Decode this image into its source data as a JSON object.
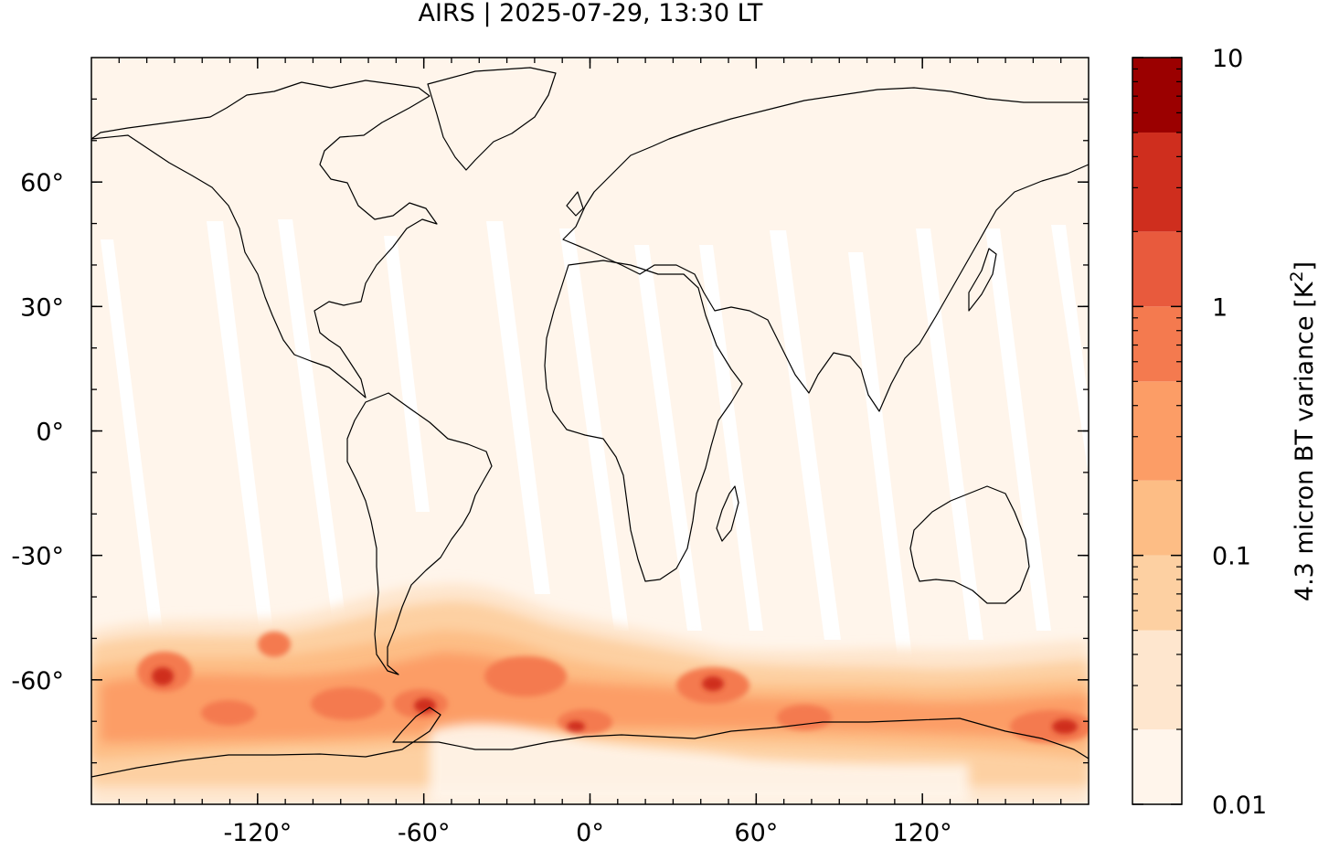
{
  "title": "AIRS | 2025-07-29, 13:30 LT",
  "map": {
    "lon_range": [
      -180,
      180
    ],
    "lat_range": [
      -90,
      90
    ],
    "lon_ticks": [
      {
        "value": -120,
        "label": "-120°"
      },
      {
        "value": -60,
        "label": "-60°"
      },
      {
        "value": 0,
        "label": "0°"
      },
      {
        "value": 60,
        "label": "60°"
      },
      {
        "value": 120,
        "label": "120°"
      }
    ],
    "lat_ticks": [
      {
        "value": 60,
        "label": "60°"
      },
      {
        "value": 30,
        "label": "30°"
      },
      {
        "value": 0,
        "label": "0°"
      },
      {
        "value": -30,
        "label": "-30°"
      },
      {
        "value": -60,
        "label": "-60°"
      }
    ],
    "background_color": "#fff5eb",
    "coastline_color": "#000000"
  },
  "colorbar": {
    "label_main": "4.3 micron BT variance [K",
    "label_sup": "2",
    "label_end": "]",
    "scale": "log",
    "range": [
      0.01,
      10
    ],
    "tick_labels": [
      {
        "value": 10,
        "label": "10"
      },
      {
        "value": 1,
        "label": "1"
      },
      {
        "value": 0.1,
        "label": "0.1"
      },
      {
        "value": 0.01,
        "label": "0.01"
      }
    ],
    "levels": [
      {
        "from": 0.01,
        "to": 0.02,
        "color": "#fff5eb"
      },
      {
        "from": 0.02,
        "to": 0.05,
        "color": "#fee6ce"
      },
      {
        "from": 0.05,
        "to": 0.1,
        "color": "#fdd0a2"
      },
      {
        "from": 0.1,
        "to": 0.2,
        "color": "#fdbd85"
      },
      {
        "from": 0.2,
        "to": 0.5,
        "color": "#fc9d66"
      },
      {
        "from": 0.5,
        "to": 1,
        "color": "#f47a4f"
      },
      {
        "from": 1,
        "to": 2,
        "color": "#e85a3d"
      },
      {
        "from": 2,
        "to": 5,
        "color": "#cf2e1e"
      },
      {
        "from": 5,
        "to": 10,
        "color": "#9b0000"
      }
    ]
  }
}
